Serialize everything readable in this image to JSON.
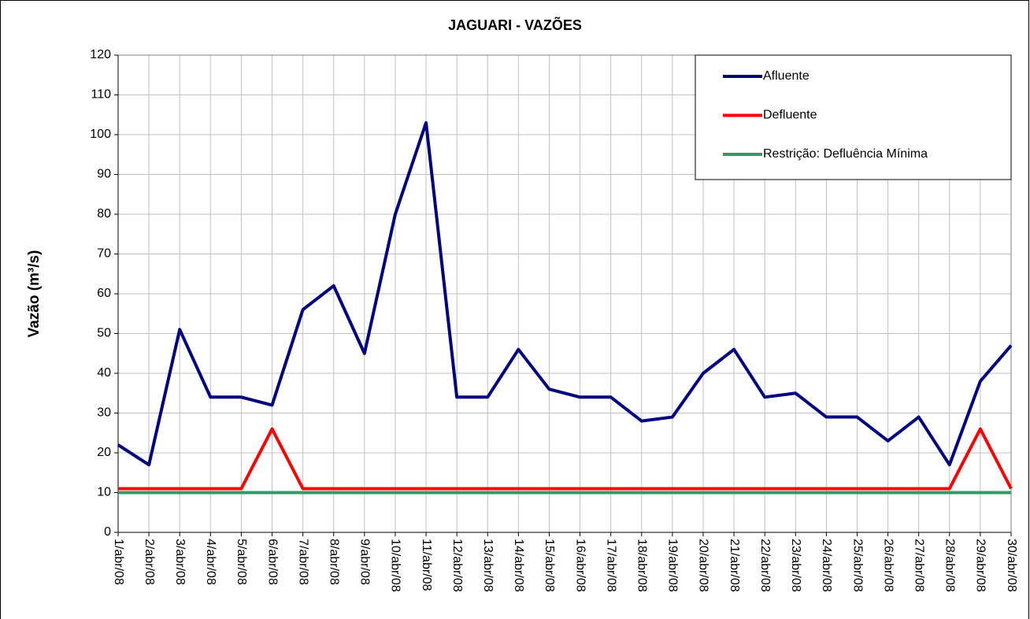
{
  "chart_data": {
    "type": "line",
    "title": "JAGUARI - VAZÕES",
    "y_label": "Vazão (m³/s)",
    "categories": [
      "1/abr/08",
      "2/abr/08",
      "3/abr/08",
      "4/abr/08",
      "5/abr/08",
      "6/abr/08",
      "7/abr/08",
      "8/abr/08",
      "9/abr/08",
      "10/abr/08",
      "11/abr/08",
      "12/abr/08",
      "13/abr/08",
      "14/abr/08",
      "15/abr/08",
      "16/abr/08",
      "17/abr/08",
      "18/abr/08",
      "19/abr/08",
      "20/abr/08",
      "21/abr/08",
      "22/abr/08",
      "23/abr/08",
      "24/abr/08",
      "25/abr/08",
      "26/abr/08",
      "27/abr/08",
      "28/abr/08",
      "29/abr/08",
      "30/abr/08"
    ],
    "series": [
      {
        "name": "Afluente",
        "color": "#000080",
        "values": [
          22,
          17,
          51,
          34,
          34,
          32,
          56,
          62,
          45,
          80,
          103,
          34,
          34,
          46,
          36,
          34,
          34,
          28,
          29,
          40,
          46,
          34,
          35,
          29,
          29,
          23,
          29,
          17,
          38,
          47
        ]
      },
      {
        "name": "Defluente",
        "color": "#ff0000",
        "values": [
          11,
          11,
          11,
          11,
          11,
          26,
          11,
          11,
          11,
          11,
          11,
          11,
          11,
          11,
          11,
          11,
          11,
          11,
          11,
          11,
          11,
          11,
          11,
          11,
          11,
          11,
          11,
          11,
          26,
          11
        ]
      },
      {
        "name": "Restrição: Defluência Mínima",
        "color": "#339966",
        "values": [
          10,
          10,
          10,
          10,
          10,
          10,
          10,
          10,
          10,
          10,
          10,
          10,
          10,
          10,
          10,
          10,
          10,
          10,
          10,
          10,
          10,
          10,
          10,
          10,
          10,
          10,
          10,
          10,
          10,
          10
        ]
      }
    ],
    "ylim": [
      0,
      120
    ],
    "yticks": [
      0,
      10,
      20,
      30,
      40,
      50,
      60,
      70,
      80,
      90,
      100,
      110,
      120
    ],
    "grid": true,
    "legend": "top-right"
  }
}
